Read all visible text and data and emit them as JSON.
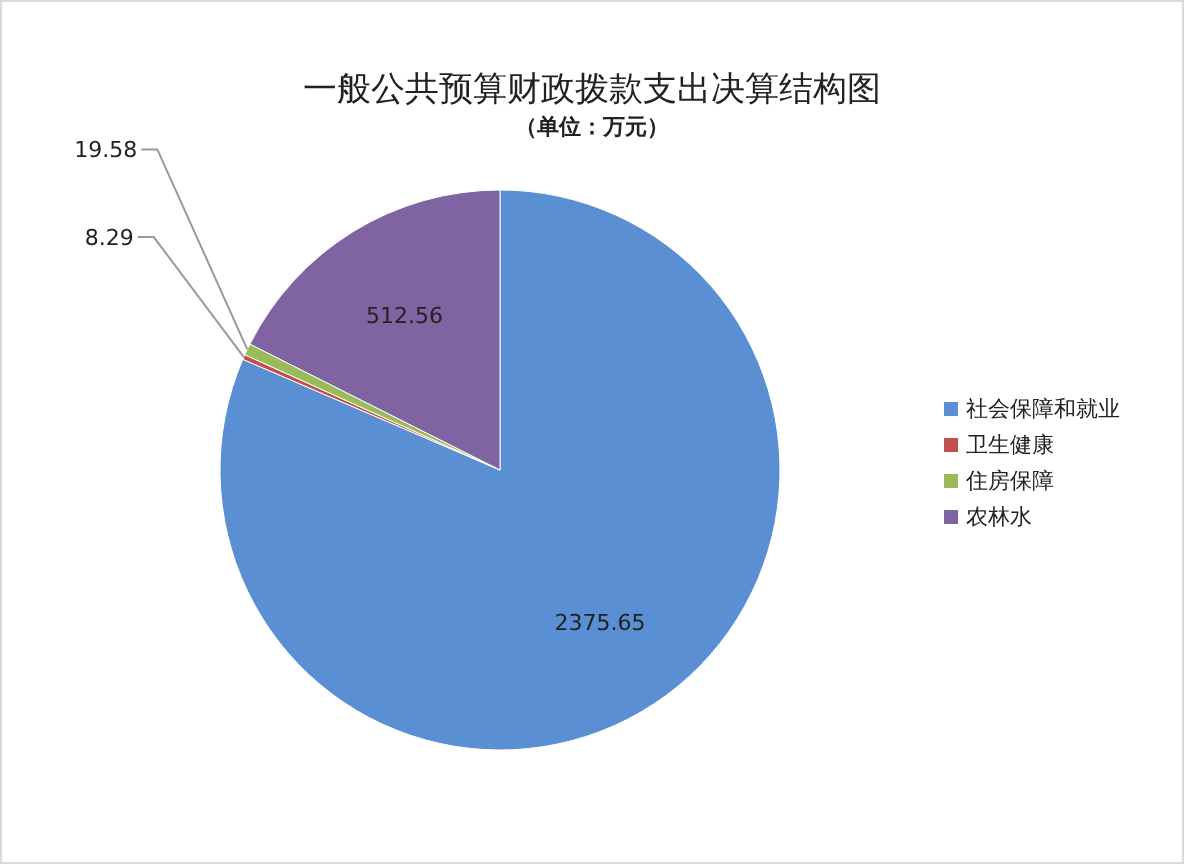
{
  "chart_data": {
    "type": "pie",
    "title": "一般公共预算财政拨款支出决算结构图",
    "subtitle": "（单位：万元）",
    "categories": [
      "社会保障和就业",
      "卫生健康",
      "住房保障",
      "农林水"
    ],
    "values": [
      2375.65,
      8.29,
      19.58,
      512.56
    ],
    "colors": [
      "#5b8fd4",
      "#c0504d",
      "#9bbb59",
      "#8064a2"
    ],
    "data_labels": true,
    "legend": "right"
  }
}
